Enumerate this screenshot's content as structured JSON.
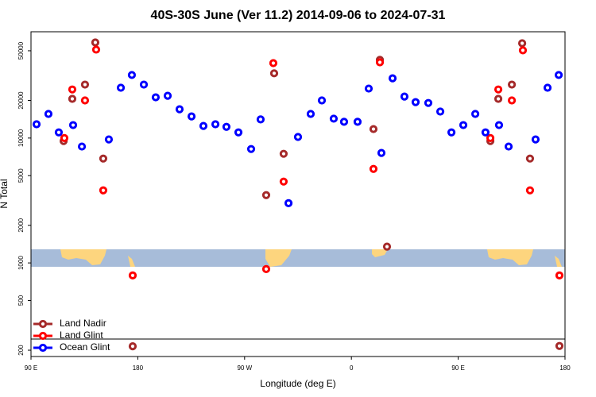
{
  "chart_data": {
    "type": "scatter",
    "title": "40S-30S June (Ver 11.2)   2014-09-06 to 2024-07-31",
    "x_label": "Longitude (deg E)",
    "y_label": "N Total",
    "log_y": true,
    "legend": "lower left",
    "xlim": [
      90,
      540
    ],
    "ylim": [
      178,
      71000
    ],
    "xticks": [
      {
        "value": 90,
        "label": "90 E"
      },
      180,
      {
        "value": 270,
        "label": "90 W"
      },
      {
        "value": 360,
        "label": "0"
      },
      {
        "value": 450,
        "label": "90 E"
      },
      {
        "value": 540,
        "label": "180"
      }
    ],
    "yticks": [
      200,
      500,
      1000,
      2000,
      5000,
      10000,
      20000,
      50000
    ],
    "series": [
      {
        "name": "Land Nadir",
        "color": "#a52a2a",
        "x": [
          117.5,
          124.8,
          135.5,
          144.2,
          150.9,
          175.7,
          288.2,
          294.9,
          302.9,
          378.6,
          384.0,
          390.0,
          477.1,
          483.8,
          495.2,
          503.9,
          510.5,
          535.3
        ],
        "values": [
          9460,
          20600,
          26800,
          58300,
          6850,
          215,
          3490,
          33000,
          7480,
          11800,
          42300,
          1350,
          9460,
          20600,
          26800,
          57400,
          6850,
          216
        ]
      },
      {
        "name": "Land Glint",
        "color": "#ff0000",
        "x": [
          118.1,
          124.8,
          135.5,
          144.9,
          150.9,
          175.7,
          288.2,
          294.2,
          302.9,
          378.6,
          384.0,
          477.1,
          483.8,
          495.2,
          504.5,
          510.5,
          535.3
        ],
        "values": [
          10000,
          24500,
          20000,
          51100,
          3810,
          794,
          893,
          39800,
          4480,
          5660,
          40400,
          10000,
          24500,
          20000,
          50400,
          3810,
          794
        ]
      },
      {
        "name": "Ocean Glint",
        "color": "#0000ff",
        "x": [
          94.7,
          104.7,
          113.4,
          125.5,
          132.9,
          155.6,
          165.7,
          175.0,
          185.1,
          195.1,
          205.2,
          215.2,
          225.3,
          235.3,
          245.4,
          254.7,
          264.8,
          275.5,
          283.5,
          307.0,
          315.0,
          325.7,
          335.1,
          345.1,
          353.8,
          365.2,
          374.6,
          385.3,
          394.7,
          404.7,
          414.1,
          424.8,
          434.9,
          444.3,
          454.3,
          464.4,
          473.0,
          484.4,
          492.5,
          515.2,
          525.3,
          534.7
        ],
        "values": [
          12900,
          15600,
          11100,
          12700,
          8550,
          9750,
          25300,
          32000,
          26800,
          21200,
          21800,
          17000,
          14900,
          12500,
          12900,
          12300,
          11100,
          8170,
          14100,
          3010,
          10200,
          15600,
          20000,
          14300,
          13500,
          13500,
          24900,
          7600,
          30100,
          21500,
          19400,
          19100,
          16300,
          11100,
          12700,
          15600,
          11100,
          12700,
          8550,
          9750,
          25300,
          32000
        ]
      }
    ]
  }
}
